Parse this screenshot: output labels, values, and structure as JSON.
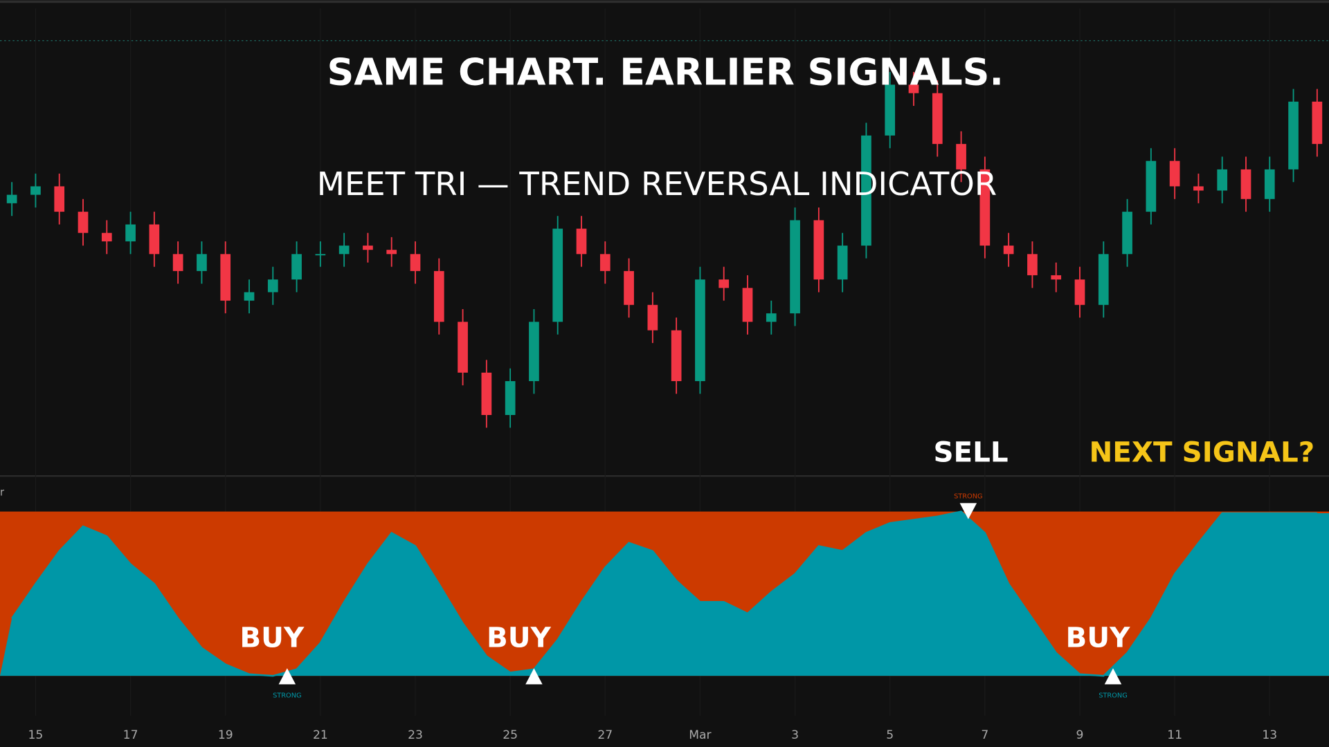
{
  "chart_data": [
    {
      "type": "candlestick",
      "title": "SAME CHART. EARLIER SIGNALS.",
      "subtitle": "MEET TRI — TREND REVERSAL INDICATOR",
      "x": [
        0,
        1,
        2,
        3,
        4,
        5,
        6,
        7,
        8,
        9,
        10,
        11,
        12,
        13,
        14,
        15,
        16,
        17,
        18,
        19,
        20,
        21,
        22,
        23,
        24,
        25,
        26,
        27,
        28,
        29,
        30,
        31,
        32,
        33,
        34,
        35,
        36,
        37,
        38,
        39,
        40,
        41,
        42,
        43,
        44,
        45,
        46,
        47,
        48,
        49,
        50,
        51,
        52,
        53,
        54,
        55
      ],
      "open": [
        320,
        330,
        340,
        310,
        285,
        275,
        295,
        260,
        240,
        260,
        205,
        215,
        230,
        260,
        260,
        270,
        265,
        260,
        240,
        180,
        120,
        70,
        110,
        180,
        290,
        260,
        240,
        200,
        170,
        110,
        230,
        220,
        180,
        190,
        300,
        230,
        270,
        400,
        460,
        450,
        390,
        360,
        270,
        260,
        235,
        230,
        200,
        260,
        310,
        370,
        340,
        335,
        360,
        325,
        360,
        440
      ],
      "high": [
        345,
        355,
        355,
        325,
        300,
        310,
        310,
        275,
        275,
        275,
        230,
        245,
        275,
        275,
        285,
        285,
        280,
        275,
        255,
        195,
        135,
        125,
        195,
        305,
        305,
        275,
        255,
        215,
        185,
        245,
        245,
        235,
        205,
        315,
        315,
        285,
        415,
        475,
        475,
        465,
        405,
        375,
        285,
        275,
        250,
        245,
        275,
        325,
        385,
        385,
        355,
        375,
        375,
        375,
        455,
        455
      ],
      "low": [
        305,
        315,
        295,
        270,
        260,
        260,
        245,
        225,
        225,
        190,
        190,
        200,
        215,
        245,
        245,
        250,
        245,
        225,
        165,
        105,
        55,
        55,
        95,
        165,
        245,
        225,
        185,
        155,
        95,
        95,
        205,
        165,
        165,
        175,
        215,
        215,
        255,
        385,
        435,
        375,
        345,
        255,
        245,
        220,
        215,
        185,
        185,
        245,
        295,
        325,
        320,
        320,
        310,
        310,
        345,
        375
      ],
      "close": [
        330,
        340,
        310,
        285,
        275,
        295,
        260,
        240,
        260,
        205,
        215,
        230,
        260,
        260,
        270,
        265,
        260,
        240,
        180,
        120,
        70,
        110,
        180,
        290,
        260,
        240,
        200,
        170,
        110,
        230,
        220,
        180,
        190,
        300,
        230,
        270,
        400,
        460,
        450,
        390,
        360,
        270,
        260,
        235,
        230,
        200,
        260,
        310,
        370,
        340,
        335,
        360,
        325,
        360,
        440,
        390
      ],
      "up_color": "#089981",
      "down_color": "#f23645",
      "xlim": [
        -0.5,
        55.5
      ],
      "ylim": [
        0,
        500
      ]
    },
    {
      "type": "area",
      "indicator_label": "r",
      "x": [
        0,
        1,
        2,
        3,
        4,
        5,
        6,
        7,
        8,
        9,
        10,
        11,
        12,
        13,
        14,
        15,
        16,
        17,
        18,
        19,
        20,
        21,
        22,
        23,
        24,
        25,
        26,
        27,
        28,
        29,
        30,
        31,
        32,
        33,
        34,
        35,
        36,
        37,
        38,
        39,
        40,
        41,
        42,
        43,
        44,
        45,
        46,
        47,
        48,
        49,
        50,
        51,
        52,
        53,
        54,
        55
      ],
      "values": [
        35,
        56,
        76,
        91,
        85,
        68,
        56,
        35,
        17,
        7,
        1,
        0,
        4,
        20,
        45,
        68,
        87,
        79,
        56,
        32,
        12,
        2,
        4,
        22,
        45,
        66,
        81,
        76,
        58,
        45,
        45,
        38,
        51,
        62,
        79,
        76,
        87,
        93,
        95,
        97,
        100,
        87,
        56,
        35,
        14,
        1,
        0,
        14,
        35,
        62,
        81,
        99,
        99,
        99,
        99,
        99
      ],
      "color": "#0097a7",
      "background_color": "#cc3a00",
      "xlim": [
        -0.5,
        55.5
      ],
      "ylim": [
        0,
        100
      ],
      "xticks": [
        {
          "value": 1,
          "label": "15"
        },
        {
          "value": 5,
          "label": "17"
        },
        {
          "value": 9,
          "label": "19"
        },
        {
          "value": 13,
          "label": "21"
        },
        {
          "value": 17,
          "label": "23"
        },
        {
          "value": 21,
          "label": "25"
        },
        {
          "value": 25,
          "label": "27"
        },
        {
          "value": 29,
          "label": "Mar"
        },
        {
          "value": 33,
          "label": "3"
        },
        {
          "value": 37,
          "label": "5"
        },
        {
          "value": 41,
          "label": "7"
        },
        {
          "value": 45,
          "label": "9"
        },
        {
          "value": 49,
          "label": "11"
        },
        {
          "value": 53,
          "label": "13"
        }
      ],
      "signals": [
        {
          "x": 11.6,
          "label": "BUY",
          "strength": "STRONG",
          "direction": "up"
        },
        {
          "x": 22,
          "label": "BUY",
          "direction": "up"
        },
        {
          "x": 40.3,
          "label": "SELL",
          "strength": "STRONG",
          "direction": "down"
        },
        {
          "x": 46.4,
          "label": "BUY",
          "strength": "STRONG",
          "direction": "up"
        }
      ],
      "annotation": "NEXT SIGNAL?"
    }
  ]
}
